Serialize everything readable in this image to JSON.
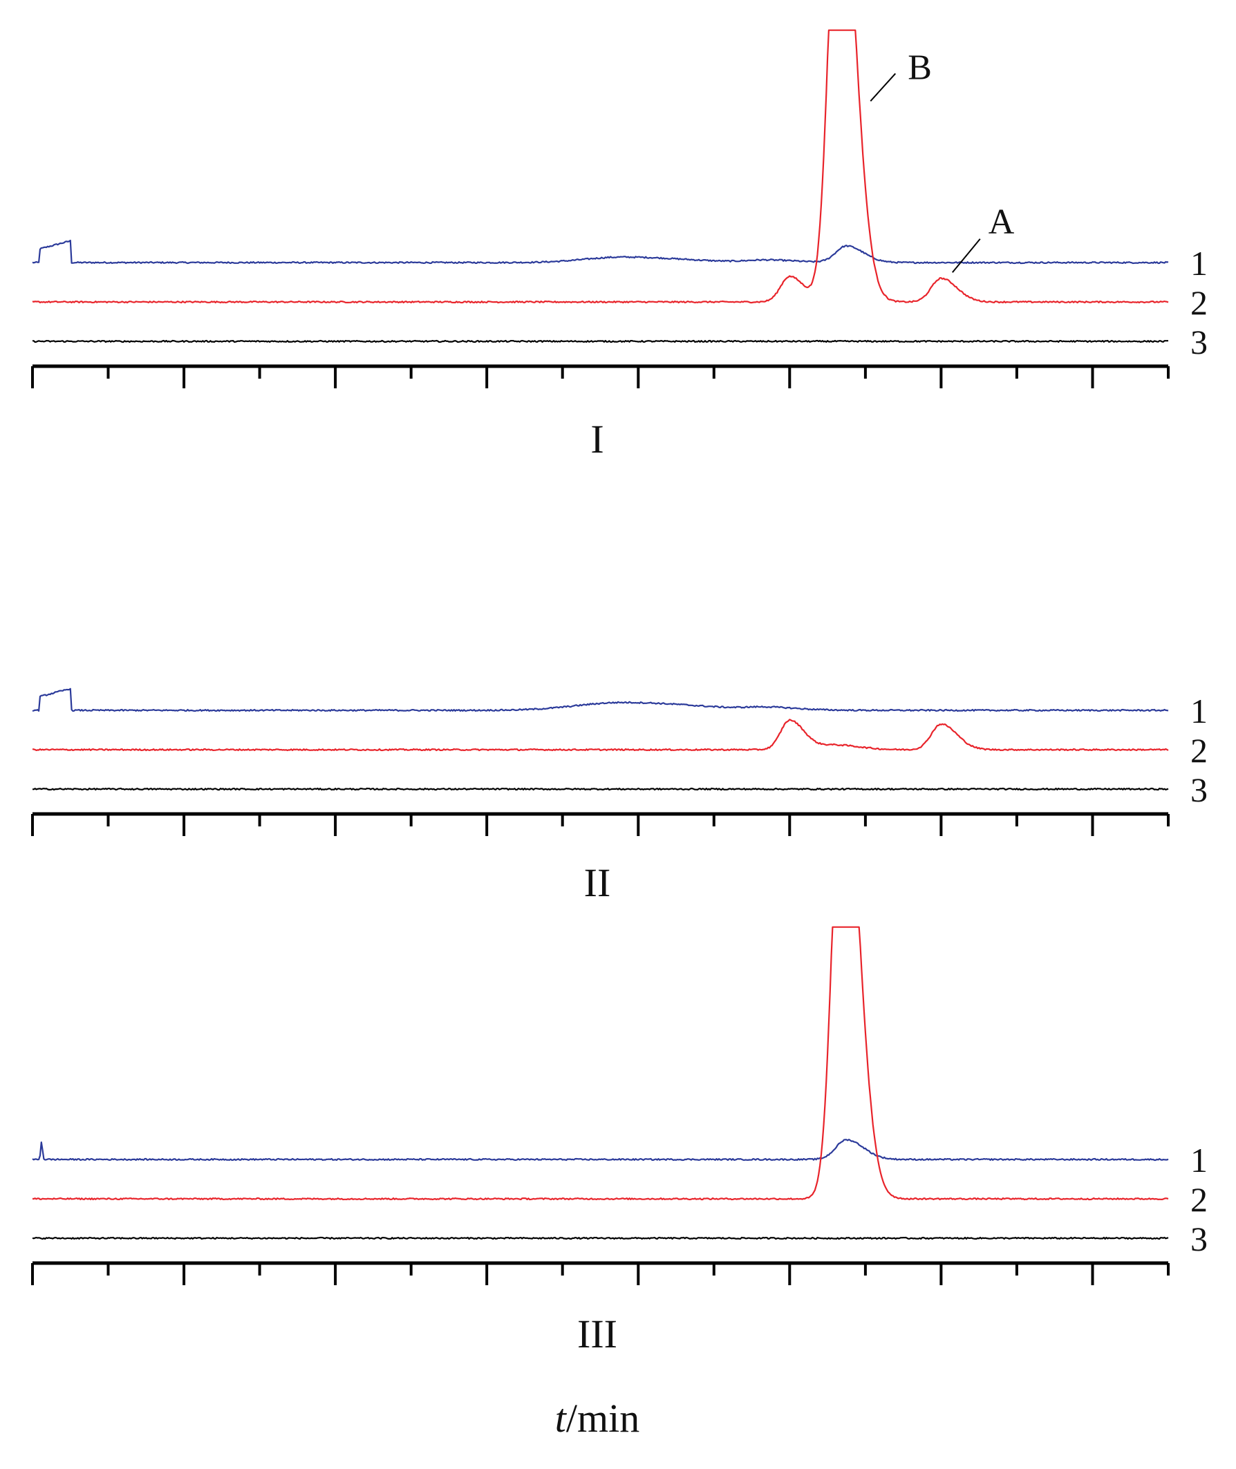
{
  "chart_data": [
    {
      "type": "line",
      "panel_label": "I",
      "xlim": [
        0,
        15
      ],
      "major_ticks": 8,
      "minor_ticks": 7,
      "annotations": [
        {
          "text": "B",
          "x": 11.05,
          "series": "2"
        },
        {
          "text": "A",
          "x": 12.15,
          "series": "2"
        }
      ],
      "series": [
        {
          "name": "1",
          "color": "#2b3a9a",
          "offset": 1.0,
          "clip_top": 1.0,
          "step": {
            "x0": 0.1,
            "x1": 0.5,
            "y0": 0.35,
            "y1": 0.55
          },
          "peaks": [
            {
              "x": 7.8,
              "h": 0.14,
              "w": 0.5
            },
            {
              "x": 9.7,
              "h": 0.06,
              "w": 0.25
            },
            {
              "x": 10.75,
              "h": 0.42,
              "w": 0.14
            }
          ]
        },
        {
          "name": "2",
          "color": "#e8232a",
          "offset": 0.0,
          "clip_top": 6.9,
          "peaks": [
            {
              "x": 10.0,
              "h": 0.65,
              "w": 0.12
            },
            {
              "x": 10.65,
              "h": 12.0,
              "w": 0.13
            },
            {
              "x": 12.0,
              "h": 0.6,
              "w": 0.13
            }
          ]
        },
        {
          "name": "3",
          "color": "#000000",
          "offset": -1.0,
          "clip_top": 1.0,
          "peaks": []
        }
      ]
    },
    {
      "type": "line",
      "panel_label": "II",
      "xlim": [
        0,
        15
      ],
      "major_ticks": 8,
      "minor_ticks": 7,
      "annotations": [],
      "series": [
        {
          "name": "1",
          "color": "#2b3a9a",
          "offset": 1.0,
          "clip_top": 1.0,
          "step": {
            "x0": 0.1,
            "x1": 0.5,
            "y0": 0.35,
            "y1": 0.55
          },
          "peaks": [
            {
              "x": 7.8,
              "h": 0.2,
              "w": 0.6
            },
            {
              "x": 9.7,
              "h": 0.06,
              "w": 0.25
            }
          ]
        },
        {
          "name": "2",
          "color": "#e8232a",
          "offset": 0.0,
          "clip_top": 1.0,
          "peaks": [
            {
              "x": 10.0,
              "h": 0.75,
              "w": 0.12
            },
            {
              "x": 10.6,
              "h": 0.12,
              "w": 0.2
            },
            {
              "x": 12.0,
              "h": 0.65,
              "w": 0.13
            }
          ]
        },
        {
          "name": "3",
          "color": "#000000",
          "offset": -1.0,
          "clip_top": 1.0,
          "peaks": []
        }
      ]
    },
    {
      "type": "line",
      "panel_label": "III",
      "xlim": [
        0,
        15
      ],
      "major_ticks": 8,
      "minor_ticks": 7,
      "annotations": [],
      "series": [
        {
          "name": "1",
          "color": "#2b3a9a",
          "offset": 1.0,
          "clip_top": 1.0,
          "spike": {
            "x": 0.12,
            "h": 0.45
          },
          "peaks": [
            {
              "x": 10.75,
              "h": 0.5,
              "w": 0.14
            }
          ]
        },
        {
          "name": "2",
          "color": "#e8232a",
          "offset": 0.0,
          "clip_top": 6.9,
          "peaks": [
            {
              "x": 10.7,
              "h": 12.0,
              "w": 0.13
            }
          ]
        },
        {
          "name": "3",
          "color": "#000000",
          "offset": -1.0,
          "clip_top": 1.0,
          "peaks": []
        }
      ]
    }
  ],
  "xlabel_italic": "t",
  "xlabel_unit": "/min"
}
